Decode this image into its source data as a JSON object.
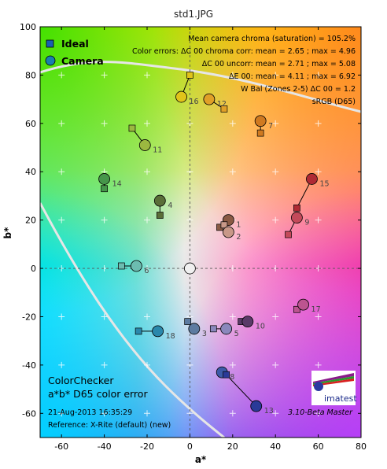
{
  "page_title": "std1.JPG",
  "chart_data": {
    "type": "scatter",
    "title": "std1.JPG",
    "xlabel": "a*",
    "ylabel": "b*",
    "xlim": [
      -70,
      80
    ],
    "ylim": [
      -70,
      100
    ],
    "x_ticks": [
      -60,
      -40,
      -20,
      0,
      20,
      40,
      60,
      80
    ],
    "y_ticks": [
      -60,
      -40,
      -20,
      0,
      20,
      40,
      60,
      80,
      100
    ],
    "grid": "plus markers",
    "legend_position": "top-left",
    "legend": [
      {
        "name": "Ideal",
        "marker": "square",
        "color": "#1a5fb4"
      },
      {
        "name": "Camera",
        "marker": "circle",
        "color": "#1a7fb0"
      }
    ],
    "stats": [
      "Mean camera chroma (saturation) = 105.2%",
      "Color errors: ΔC 00 chroma corr:  mean = 2.65 ;  max = 4.96",
      "ΔC 00 uncorr:  mean = 2.71 ;  max = 5.08",
      "ΔE 00:  mean = 4.11 ;  max = 6.92",
      "W Bal (Zones 2-5) ΔC 00 = 1.2",
      "sRGB (D65)"
    ],
    "info": {
      "line1": "ColorChecker",
      "line2": "a*b* D65 color error",
      "date": "21-Aug-2013 16:35:29",
      "reference": "Reference: X-Rite (default) (new)",
      "version": "3.10-Beta  Master"
    },
    "logo_text": "imatest",
    "patches": [
      {
        "label": "1",
        "ideal": [
          14,
          17
        ],
        "camera": [
          18,
          20
        ],
        "color": "#8a5a44"
      },
      {
        "label": "2",
        "ideal": [
          16,
          18
        ],
        "camera": [
          18,
          15
        ],
        "color": "#c89888"
      },
      {
        "label": "3",
        "ideal": [
          -1,
          -22
        ],
        "camera": [
          2,
          -25
        ],
        "color": "#5d7ba0"
      },
      {
        "label": "4",
        "ideal": [
          -14,
          22
        ],
        "camera": [
          -14,
          28
        ],
        "color": "#5a6e38"
      },
      {
        "label": "5",
        "ideal": [
          11,
          -25
        ],
        "camera": [
          17,
          -25
        ],
        "color": "#8a88bc"
      },
      {
        "label": "6",
        "ideal": [
          -32,
          1
        ],
        "camera": [
          -25,
          1
        ],
        "color": "#6cbcb0"
      },
      {
        "label": "7",
        "ideal": [
          33,
          56
        ],
        "camera": [
          33,
          61
        ],
        "color": "#d07a20"
      },
      {
        "label": "8",
        "ideal": [
          15,
          -43
        ],
        "camera": [
          15,
          -43
        ],
        "color": "#3c5aa8"
      },
      {
        "label": "9",
        "ideal": [
          46,
          14
        ],
        "camera": [
          50,
          21
        ],
        "color": "#c44a5a"
      },
      {
        "label": "10",
        "ideal": [
          24,
          -22
        ],
        "camera": [
          27,
          -22
        ],
        "color": "#5a3a68"
      },
      {
        "label": "11",
        "ideal": [
          -27,
          58
        ],
        "camera": [
          -21,
          51
        ],
        "color": "#9cb840"
      },
      {
        "label": "12",
        "ideal": [
          16,
          66
        ],
        "camera": [
          9,
          70
        ],
        "color": "#e0a028"
      },
      {
        "label": "13",
        "ideal": [
          17,
          -44
        ],
        "camera": [
          31,
          -57
        ],
        "color": "#2a3a98"
      },
      {
        "label": "14",
        "ideal": [
          -40,
          33
        ],
        "camera": [
          -40,
          37
        ],
        "color": "#46964a"
      },
      {
        "label": "15",
        "ideal": [
          50,
          25
        ],
        "camera": [
          57,
          37
        ],
        "color": "#b02a34"
      },
      {
        "label": "16",
        "ideal": [
          0,
          80
        ],
        "camera": [
          -4,
          71
        ],
        "color": "#e0c41a"
      },
      {
        "label": "17",
        "ideal": [
          50,
          -17
        ],
        "camera": [
          53,
          -15
        ],
        "color": "#bc5490"
      },
      {
        "label": "18",
        "ideal": [
          -24,
          -26
        ],
        "camera": [
          -15,
          -26
        ],
        "color": "#2a88ac"
      },
      {
        "label": "",
        "ideal": [
          0,
          0
        ],
        "camera": [
          0,
          0
        ],
        "color": "#f0f0f0"
      }
    ]
  }
}
